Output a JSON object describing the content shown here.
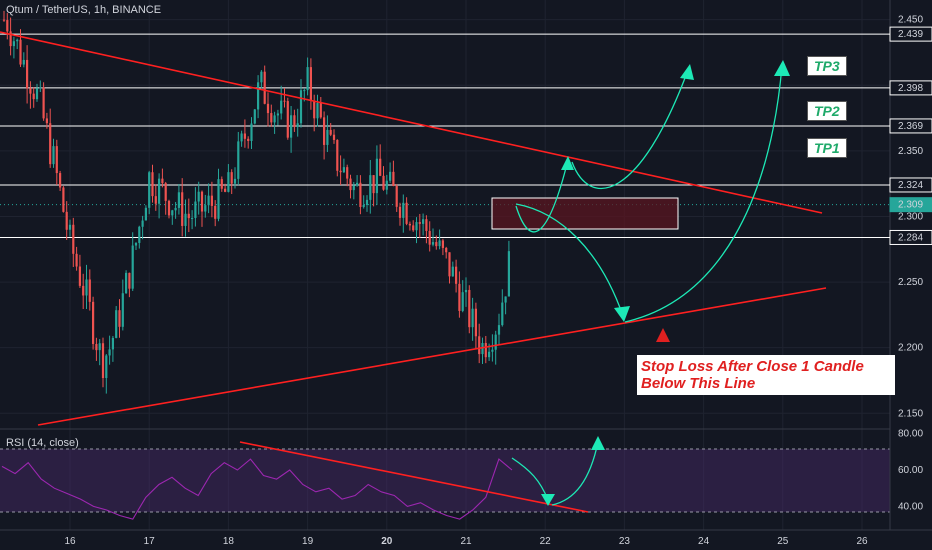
{
  "header": {
    "title": "Qtum / TetherUS, 1h, BINANCE"
  },
  "rsi_panel": {
    "title": "RSI (14, close)"
  },
  "colors": {
    "background": "#131722",
    "up": "#26a69a",
    "down": "#ef5350",
    "trendline": "#ff2020",
    "annotation": "#1de9b6",
    "rsi": "#9c27b0",
    "box": "#8b1a2a"
  },
  "annotations": {
    "tp1": "TP1",
    "tp2": "TP2",
    "tp3": "TP3",
    "stop_loss": "Stop Loss After Close 1 Candle Below This Line"
  },
  "chart_data": [
    {
      "type": "candlestick",
      "title": "Qtum / TetherUS, 1h, BINANCE",
      "x_ticks": [
        "16",
        "17",
        "18",
        "19",
        "20",
        "21",
        "22",
        "23",
        "24",
        "25",
        "26"
      ],
      "y_ticks": [
        2.15,
        2.2,
        2.25,
        2.3,
        2.35,
        2.4,
        2.45
      ],
      "ylim": [
        2.138,
        2.465
      ],
      "price_levels": [
        {
          "label": "2.439",
          "value": 2.439,
          "name": "TP3"
        },
        {
          "label": "2.398",
          "value": 2.398,
          "name": "TP2"
        },
        {
          "label": "2.369",
          "value": 2.369,
          "name": "TP1"
        },
        {
          "label": "2.324",
          "value": 2.324
        },
        {
          "label": "2.309",
          "value": 2.309,
          "current": true
        },
        {
          "label": "2.284",
          "value": 2.284
        }
      ],
      "close_path": [
        [
          "15.2",
          2.45
        ],
        [
          "15.4",
          2.42
        ],
        [
          "15.6",
          2.39
        ],
        [
          "15.8",
          2.34
        ],
        [
          "16.0",
          2.28
        ],
        [
          "16.2",
          2.24
        ],
        [
          "16.4",
          2.19
        ],
        [
          "16.5",
          2.2
        ],
        [
          "16.6",
          2.22
        ],
        [
          "16.8",
          2.27
        ],
        [
          "17.0",
          2.33
        ],
        [
          "17.3",
          2.31
        ],
        [
          "17.5",
          2.3
        ],
        [
          "17.8",
          2.31
        ],
        [
          "18.0",
          2.32
        ],
        [
          "18.2",
          2.36
        ],
        [
          "18.4",
          2.4
        ],
        [
          "18.6",
          2.38
        ],
        [
          "18.8",
          2.37
        ],
        [
          "19.0",
          2.4
        ],
        [
          "19.3",
          2.35
        ],
        [
          "19.6",
          2.32
        ],
        [
          "19.9",
          2.33
        ],
        [
          "20.2",
          2.31
        ],
        [
          "20.5",
          2.29
        ],
        [
          "20.8",
          2.26
        ],
        [
          "21.0",
          2.23
        ],
        [
          "21.2",
          2.2
        ],
        [
          "21.4",
          2.22
        ],
        [
          "21.6",
          2.28
        ],
        [
          "21.7",
          2.31
        ]
      ]
    },
    {
      "type": "line",
      "title": "RSI (14, close)",
      "y_ticks": [
        40.0,
        60.0,
        80.0
      ],
      "ylim": [
        27,
        82
      ],
      "bands": [
        30,
        70
      ],
      "values": [
        62,
        58,
        64,
        55,
        50,
        47,
        44,
        40,
        38,
        35,
        33,
        45,
        52,
        56,
        50,
        46,
        58,
        64,
        60,
        66,
        57,
        55,
        60,
        52,
        48,
        50,
        44,
        46,
        52,
        48,
        46,
        40,
        42,
        38,
        35,
        33,
        38,
        45,
        66,
        60
      ]
    }
  ]
}
